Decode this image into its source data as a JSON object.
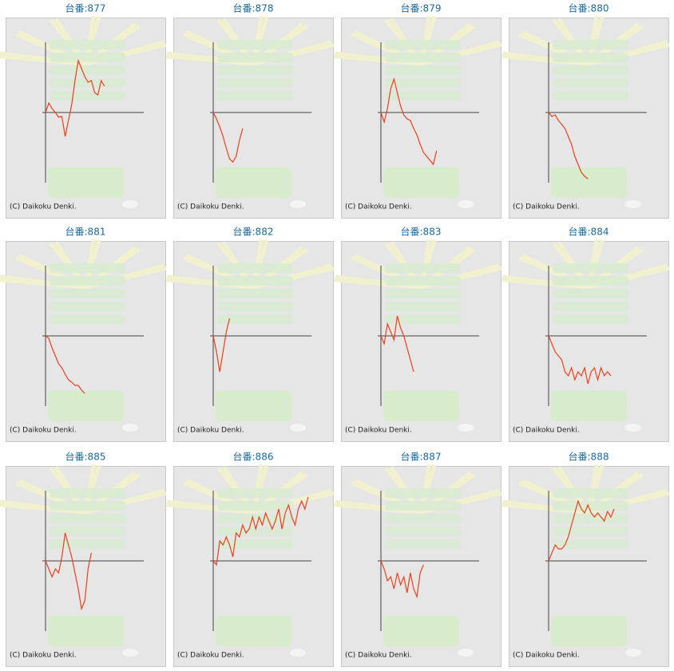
{
  "chart_data": [
    {
      "type": "line",
      "title": "台番:877",
      "caption": "(C) Daikoku Denki.",
      "xlim": [
        0,
        30
      ],
      "ylim": [
        -88,
        88
      ],
      "series": [
        {
          "color": "#e8401a",
          "values": [
            0,
            12,
            5,
            0,
            -6,
            -5,
            -30,
            -10,
            10,
            40,
            65,
            55,
            45,
            38,
            40,
            25,
            22,
            40,
            33
          ]
        }
      ]
    },
    {
      "type": "line",
      "title": "台番:878",
      "caption": "(C) Daikoku Denki.",
      "xlim": [
        0,
        30
      ],
      "ylim": [
        -88,
        88
      ],
      "series": [
        {
          "color": "#e8401a",
          "values": [
            0,
            -8,
            -18,
            -30,
            -45,
            -58,
            -62,
            -55,
            -35,
            -20
          ]
        }
      ]
    },
    {
      "type": "line",
      "title": "台番:879",
      "caption": "(C) Daikoku Denki.",
      "xlim": [
        0,
        30
      ],
      "ylim": [
        -88,
        88
      ],
      "series": [
        {
          "color": "#e8401a",
          "values": [
            0,
            -12,
            5,
            30,
            42,
            25,
            8,
            -3,
            -8,
            -10,
            -20,
            -28,
            -40,
            -50,
            -55,
            -60,
            -65,
            -48
          ]
        }
      ]
    },
    {
      "type": "line",
      "title": "台番:880",
      "caption": "(C) Daikoku Denki.",
      "xlim": [
        0,
        30
      ],
      "ylim": [
        -88,
        88
      ],
      "series": [
        {
          "color": "#e8401a",
          "values": [
            0,
            -5,
            -3,
            -10,
            -15,
            -20,
            -30,
            -40,
            -55,
            -65,
            -75,
            -80,
            -83
          ]
        }
      ]
    },
    {
      "type": "line",
      "title": "台番:881",
      "caption": "(C) Daikoku Denki.",
      "xlim": [
        0,
        30
      ],
      "ylim": [
        -88,
        88
      ],
      "series": [
        {
          "color": "#e8401a",
          "values": [
            0,
            -3,
            -15,
            -25,
            -35,
            -40,
            -48,
            -55,
            -58,
            -62,
            -62,
            -68,
            -72
          ]
        }
      ]
    },
    {
      "type": "line",
      "title": "台番:882",
      "caption": "(C) Daikoku Denki.",
      "xlim": [
        0,
        30
      ],
      "ylim": [
        -88,
        88
      ],
      "series": [
        {
          "color": "#e8401a",
          "values": [
            0,
            -20,
            -45,
            -20,
            5,
            22
          ]
        }
      ]
    },
    {
      "type": "line",
      "title": "台番:883",
      "caption": "(C) Daikoku Denki.",
      "xlim": [
        0,
        30
      ],
      "ylim": [
        -88,
        88
      ],
      "series": [
        {
          "color": "#e8401a",
          "values": [
            0,
            -10,
            15,
            5,
            -5,
            25,
            10,
            0,
            -15,
            -30,
            -45
          ]
        }
      ]
    },
    {
      "type": "line",
      "title": "台番:884",
      "caption": "(C) Daikoku Denki.",
      "xlim": [
        0,
        30
      ],
      "ylim": [
        -88,
        88
      ],
      "series": [
        {
          "color": "#e8401a",
          "values": [
            0,
            -10,
            -20,
            -25,
            -30,
            -45,
            -50,
            -40,
            -55,
            -45,
            -50,
            -40,
            -60,
            -45,
            -40,
            -55,
            -40,
            -50,
            -45,
            -50
          ]
        }
      ]
    },
    {
      "type": "line",
      "title": "台番:885",
      "caption": "(C) Daikoku Denki.",
      "xlim": [
        0,
        30
      ],
      "ylim": [
        -88,
        88
      ],
      "series": [
        {
          "color": "#e8401a",
          "values": [
            0,
            -10,
            -20,
            -10,
            -15,
            5,
            35,
            20,
            5,
            -15,
            -35,
            -60,
            -50,
            -10,
            10
          ]
        }
      ]
    },
    {
      "type": "line",
      "title": "台番:886",
      "caption": "(C) Daikoku Denki.",
      "xlim": [
        0,
        30
      ],
      "ylim": [
        -88,
        88
      ],
      "series": [
        {
          "color": "#e8401a",
          "values": [
            0,
            -5,
            25,
            20,
            30,
            20,
            5,
            35,
            30,
            45,
            35,
            40,
            55,
            40,
            55,
            45,
            60,
            50,
            40,
            50,
            65,
            40,
            60,
            70,
            55,
            45,
            65,
            75,
            65,
            80
          ]
        }
      ]
    },
    {
      "type": "line",
      "title": "台番:887",
      "caption": "(C) Daikoku Denki.",
      "xlim": [
        0,
        30
      ],
      "ylim": [
        -88,
        88
      ],
      "series": [
        {
          "color": "#e8401a",
          "values": [
            0,
            -10,
            -25,
            -20,
            -35,
            -15,
            -30,
            -20,
            -40,
            -15,
            -35,
            -45,
            -15,
            -5
          ]
        }
      ]
    },
    {
      "type": "line",
      "title": "台番:888",
      "caption": "(C) Daikoku Denki.",
      "xlim": [
        0,
        30
      ],
      "ylim": [
        -88,
        88
      ],
      "series": [
        {
          "color": "#e8401a",
          "values": [
            0,
            10,
            20,
            15,
            15,
            20,
            30,
            45,
            60,
            75,
            65,
            60,
            70,
            60,
            55,
            60,
            55,
            50,
            62,
            55,
            65
          ]
        }
      ]
    }
  ]
}
